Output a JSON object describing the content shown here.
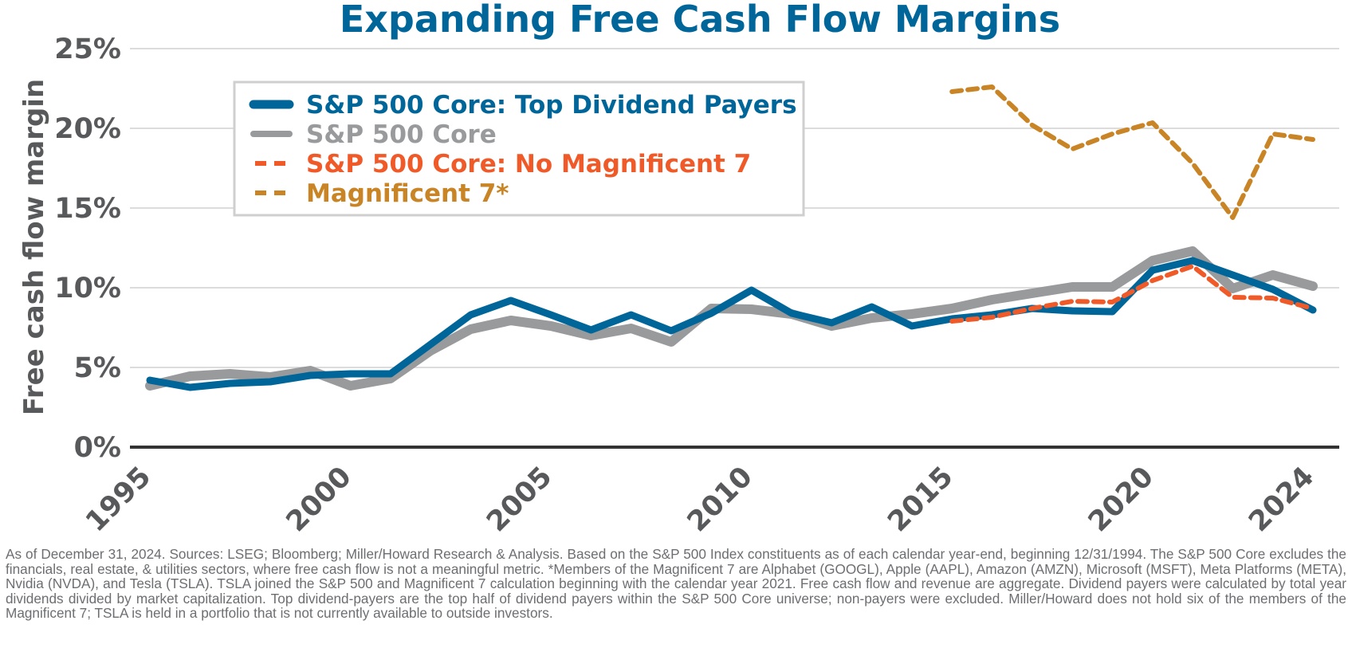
{
  "colors": {
    "title": "#00669a",
    "axis_text": "#58595b",
    "gridline": "#dcdcdc",
    "axis_line": "#333333",
    "footnote": "#6d6e71"
  },
  "chart_data": {
    "type": "line",
    "title": "Expanding Free Cash Flow Margins",
    "xlabel": "",
    "ylabel": "Free cash flow margin",
    "x": [
      1995,
      1996,
      1997,
      1998,
      1999,
      2000,
      2001,
      2002,
      2003,
      2004,
      2005,
      2006,
      2007,
      2008,
      2009,
      2010,
      2011,
      2012,
      2013,
      2014,
      2015,
      2016,
      2017,
      2018,
      2019,
      2020,
      2021,
      2022,
      2023,
      2024
    ],
    "xlim": [
      1995,
      2024
    ],
    "ylim": [
      0,
      25
    ],
    "x_ticks": [
      1995,
      2000,
      2005,
      2010,
      2015,
      2020,
      2024
    ],
    "x_tick_labels": [
      "1995",
      "2000",
      "2005",
      "2010",
      "2015",
      "2020",
      "2024"
    ],
    "y_ticks": [
      0,
      5,
      10,
      15,
      20,
      25
    ],
    "y_tick_labels": [
      "0%",
      "5%",
      "10%",
      "15%",
      "20%",
      "25%"
    ],
    "grid": true,
    "legend_position": "top-left",
    "series": [
      {
        "name": "S&P 500 Core",
        "color": "#999a9c",
        "style": "solid-thick",
        "values": [
          3.85,
          4.45,
          4.6,
          4.4,
          4.8,
          3.85,
          4.3,
          6.05,
          7.4,
          7.95,
          7.6,
          7.0,
          7.45,
          6.6,
          8.7,
          8.65,
          8.35,
          7.6,
          8.1,
          8.35,
          8.7,
          9.25,
          9.65,
          10.05,
          10.05,
          11.7,
          12.3,
          9.95,
          10.8,
          10.1
        ]
      },
      {
        "name": "S&P 500 Core: Top Dividend Payers",
        "color": "#00669a",
        "style": "solid",
        "values": [
          4.2,
          3.75,
          4.0,
          4.1,
          4.5,
          4.6,
          4.6,
          6.45,
          8.3,
          9.2,
          8.3,
          7.35,
          8.3,
          7.3,
          8.4,
          9.85,
          8.4,
          7.8,
          8.8,
          7.6,
          8.05,
          8.3,
          8.7,
          8.55,
          8.5,
          11.1,
          11.7,
          10.8,
          9.9,
          8.6
        ]
      },
      {
        "name": "S&P 500 Core: No Magnificent  7",
        "color": "#f05a28",
        "style": "dashed",
        "values": [
          null,
          null,
          null,
          null,
          null,
          null,
          null,
          null,
          null,
          null,
          null,
          null,
          null,
          null,
          null,
          null,
          null,
          null,
          null,
          null,
          7.9,
          8.15,
          8.7,
          9.15,
          9.1,
          10.45,
          11.35,
          9.4,
          9.35,
          8.7
        ]
      },
      {
        "name": "Magnificent 7*",
        "color": "#c98425",
        "style": "dashed",
        "values": [
          null,
          null,
          null,
          null,
          null,
          null,
          null,
          null,
          null,
          null,
          null,
          null,
          null,
          null,
          null,
          null,
          null,
          null,
          null,
          null,
          22.3,
          22.6,
          20.2,
          18.7,
          19.65,
          20.35,
          17.8,
          14.4,
          19.65,
          19.3
        ]
      }
    ]
  },
  "footnote": "As of December 31, 2024. Sources: LSEG; Bloomberg; Miller/Howard Research & Analysis. Based on the S&P 500 Index constituents as of each calendar year-end, beginning 12/31/1994. The S&P 500 Core excludes the financials, real estate, & utilities sectors, where free cash flow is not a meaningful metric. *Members of the Magnificent 7 are Alphabet (GOOGL), Apple (AAPL), Amazon (AMZN), Microsoft (MSFT), Meta Platforms (META), Nvidia (NVDA), and Tesla (TSLA). TSLA joined the S&P 500 and Magnificent 7 calculation beginning with the calendar year 2021. Free cash flow and revenue are aggregate. Dividend payers were calculated by total year dividends divided by market capitalization. Top dividend-payers are the top half of dividend payers within the S&P 500 Core universe; non-payers were excluded. Miller/Howard does not hold six of the members of the Magnificent 7; TSLA is held in a portfolio that is not currently available to outside investors."
}
